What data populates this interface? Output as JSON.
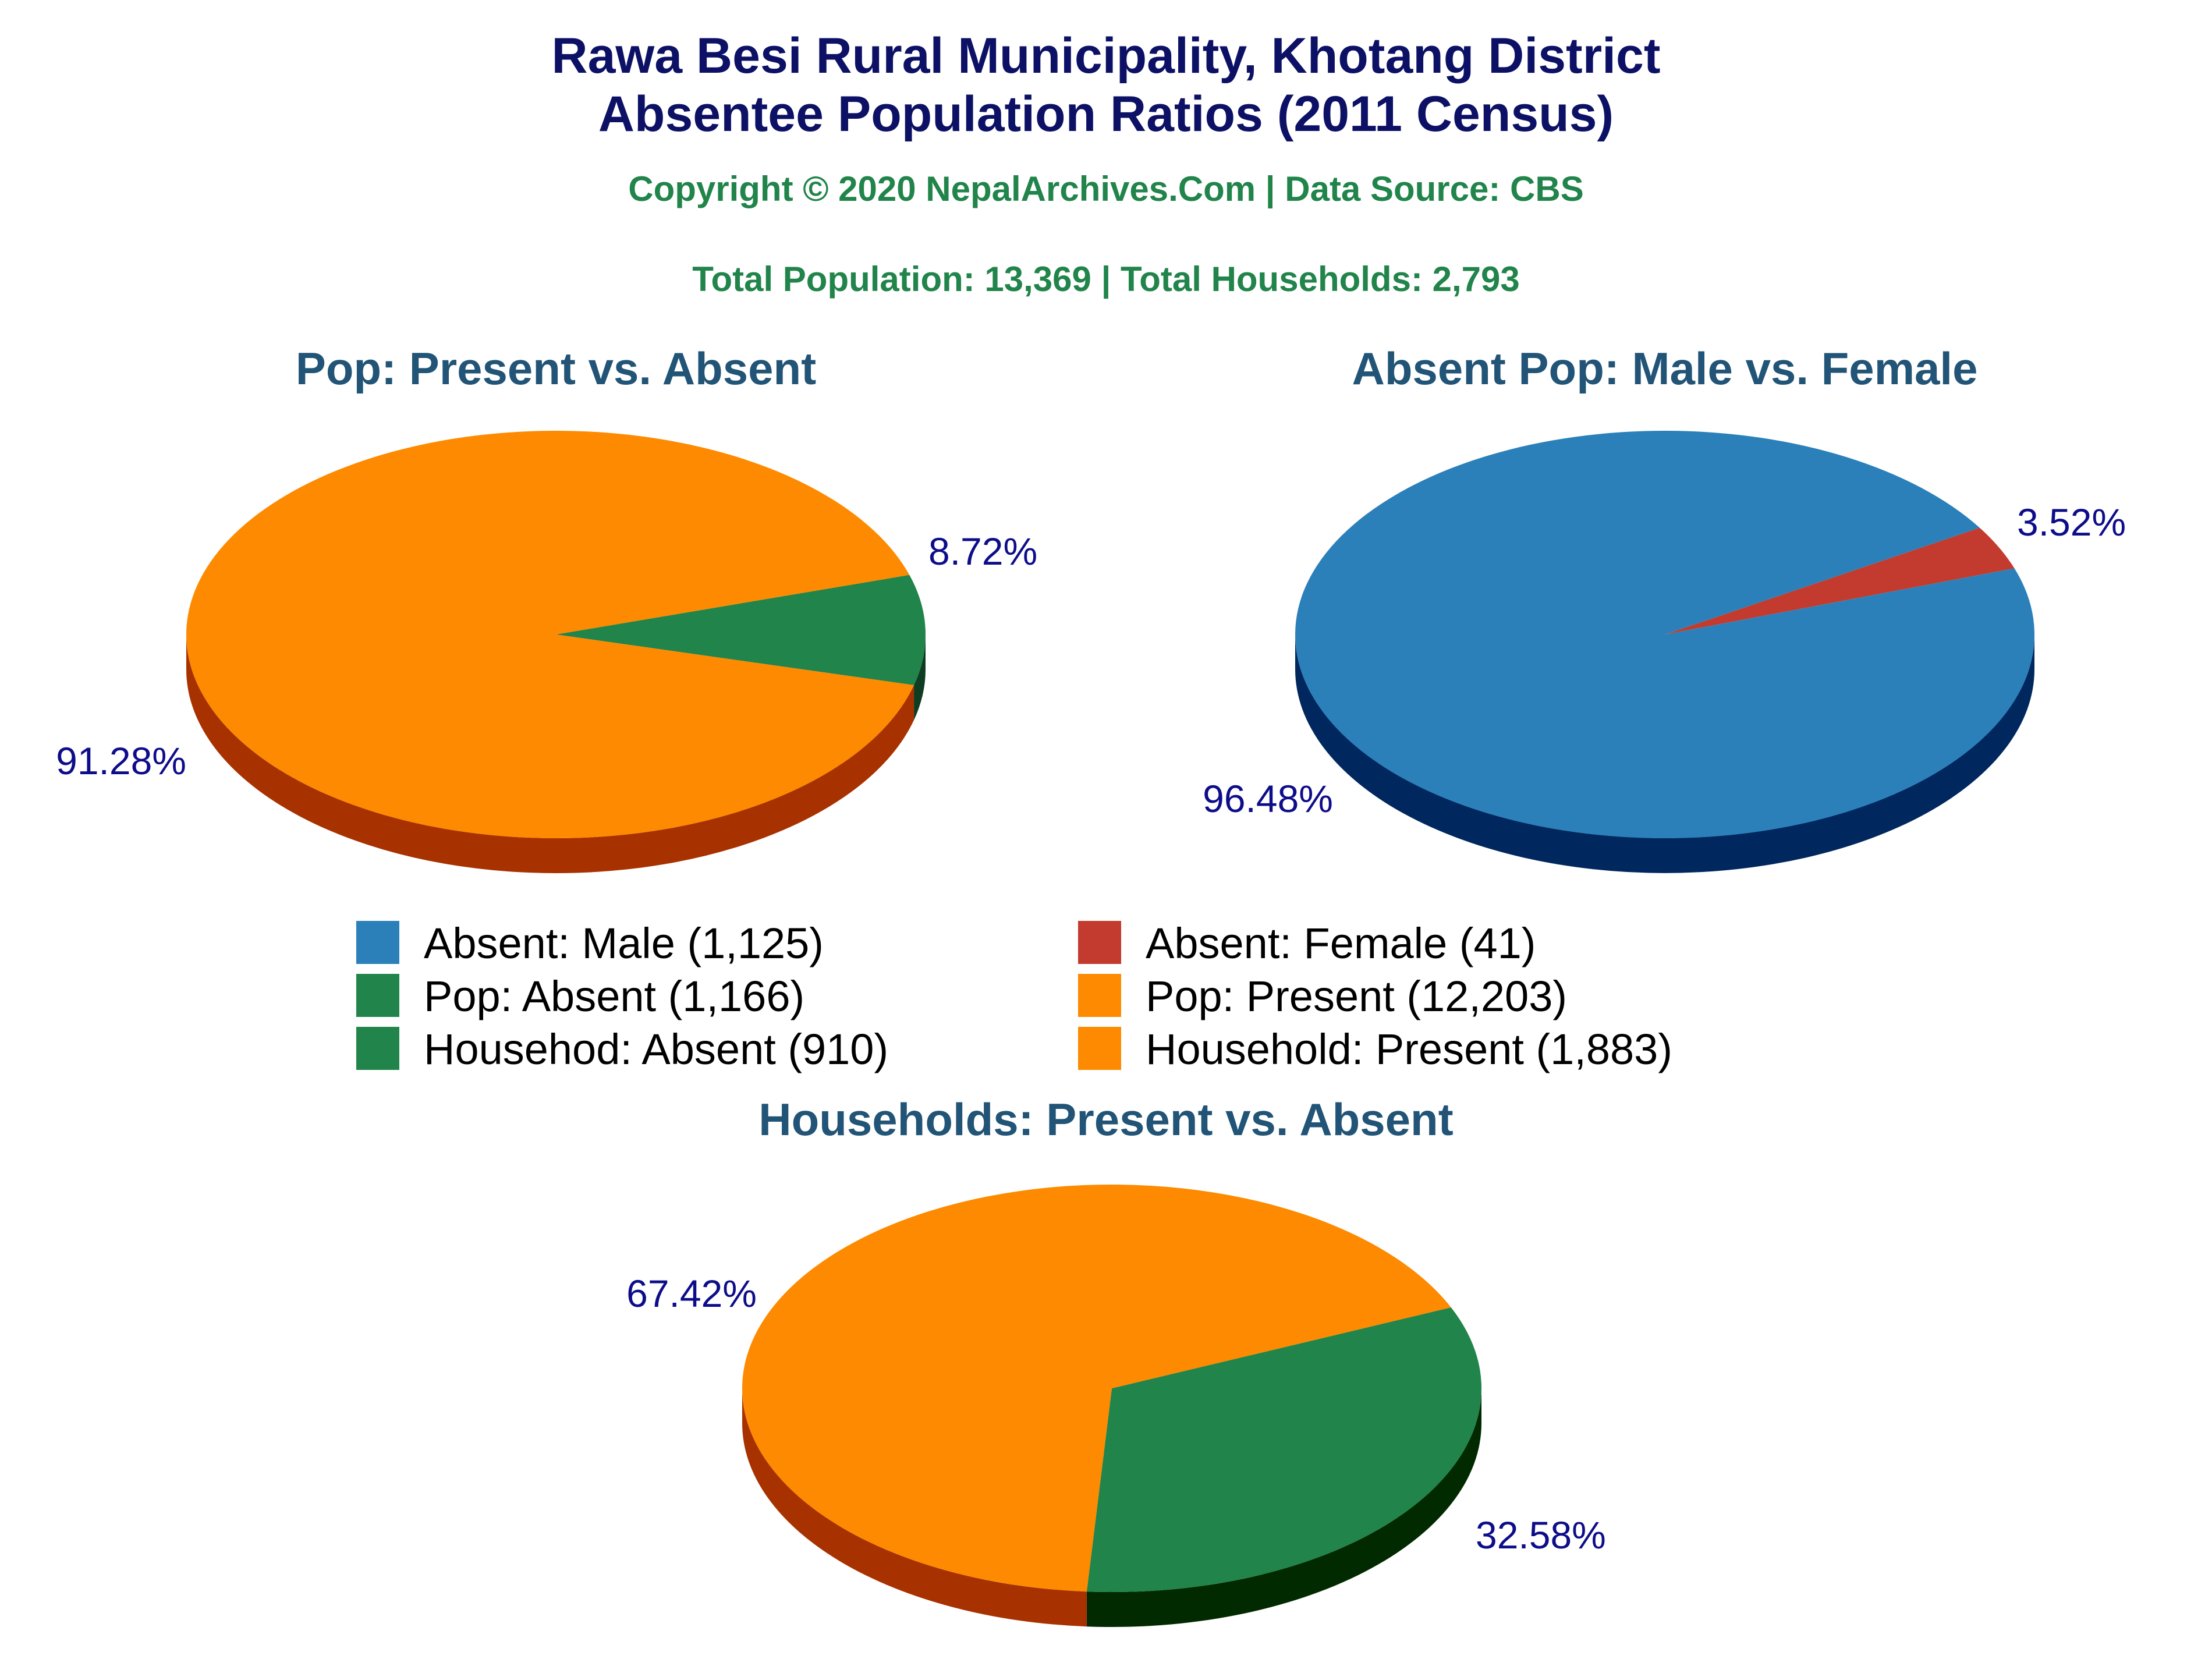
{
  "chart_data": {
    "type": "pie",
    "title_line1": "Rawa Besi Rural Municipality, Khotang District",
    "title_line2": "Absentee Population Ratios (2011 Census)",
    "copyright": "Copyright © 2020 NepalArchives.Com | Data Source: CBS",
    "totals": "Total Population: 13,369 | Total Households: 2,793",
    "pies": [
      {
        "title": "Pop: Present vs. Absent",
        "slices": [
          {
            "label": "Pop: Absent",
            "value": 1166,
            "pct_text": "8.72%",
            "color": "#21844a",
            "side": "#0e3d22"
          },
          {
            "label": "Pop: Present",
            "value": 12203,
            "pct_text": "91.28%",
            "color": "#fd8a00",
            "side": "#a83100"
          }
        ]
      },
      {
        "title": "Absent Pop: Male vs. Female",
        "slices": [
          {
            "label": "Absent: Female",
            "value": 41,
            "pct_text": "3.52%",
            "color": "#c33b2e",
            "side": "#6b1a12"
          },
          {
            "label": "Absent: Male",
            "value": 1125,
            "pct_text": "96.48%",
            "color": "#2b80ba",
            "side": "#00285e"
          }
        ]
      },
      {
        "title": "Households: Present vs. Absent",
        "slices": [
          {
            "label": "Househod: Absent",
            "value": 910,
            "pct_text": "32.58%",
            "color": "#21844a",
            "side": "#012a00"
          },
          {
            "label": "Household: Present",
            "value": 1883,
            "pct_text": "67.42%",
            "color": "#fd8a00",
            "side": "#a83100"
          }
        ]
      }
    ],
    "legend": [
      {
        "text": "Absent: Male (1,125)",
        "color": "#2b80ba"
      },
      {
        "text": "Absent: Female (41)",
        "color": "#c33b2e"
      },
      {
        "text": "Pop: Absent (1,166)",
        "color": "#21844a"
      },
      {
        "text": "Pop: Present (12,203)",
        "color": "#fd8a00"
      },
      {
        "text": "Househod: Absent (910)",
        "color": "#21844a"
      },
      {
        "text": "Household: Present (1,883)",
        "color": "#fd8a00"
      }
    ]
  }
}
